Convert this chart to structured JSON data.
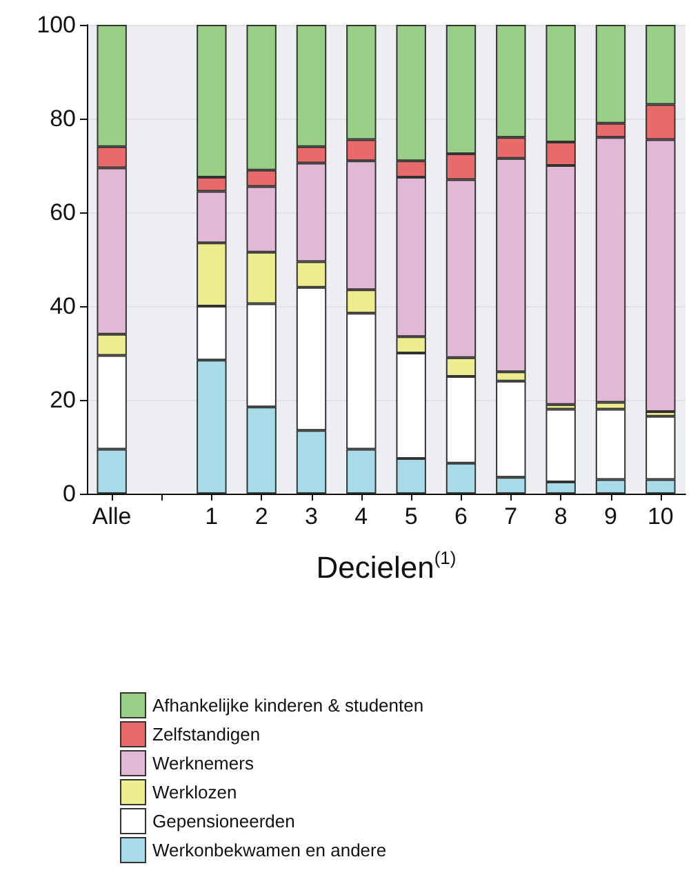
{
  "chart_data": {
    "type": "bar",
    "stacked": true,
    "xlabel": "Decielen$^{(1)}$",
    "categories": [
      "Alle",
      null,
      "1",
      "2",
      "3",
      "4",
      "5",
      "6",
      "7",
      "8",
      "9",
      "10"
    ],
    "series": [
      {
        "name": "Werkonbekwamen en andere",
        "color": "#a8dbe8",
        "values": [
          9.5,
          null,
          28.5,
          18.5,
          13.5,
          9.5,
          7.5,
          6.5,
          3.5,
          2.5,
          3,
          3
        ]
      },
      {
        "name": "Gepensioneerden",
        "color": "#ffffff",
        "values": [
          20,
          null,
          11.5,
          22,
          30.5,
          29,
          22.5,
          18.5,
          20.5,
          15.5,
          15,
          13.5
        ]
      },
      {
        "name": "Werklozen",
        "color": "#eded8f",
        "values": [
          4.5,
          null,
          13.5,
          11,
          5.5,
          5,
          3.5,
          4,
          2,
          1,
          1.5,
          1
        ]
      },
      {
        "name": "Werknemers",
        "color": "#e3b8d6",
        "values": [
          35.5,
          null,
          11,
          14,
          21,
          27.5,
          34,
          38,
          45.5,
          51,
          56.5,
          58
        ]
      },
      {
        "name": "Zelfstandigen",
        "color": "#e86a6a",
        "values": [
          4.5,
          null,
          3,
          3.5,
          3.5,
          4.5,
          3.5,
          5.5,
          4.5,
          5,
          3,
          7.5
        ]
      },
      {
        "name": "Afhankelijke kinderen & studenten",
        "color": "#98cf86",
        "values": [
          26,
          null,
          32.5,
          31,
          26,
          24.5,
          29,
          27.5,
          24,
          25,
          21,
          17
        ]
      }
    ],
    "ylim": [
      0,
      100
    ],
    "yticks": [
      0,
      20,
      40,
      60,
      80,
      100
    ],
    "grid": "y",
    "legend": "bottom left"
  }
}
